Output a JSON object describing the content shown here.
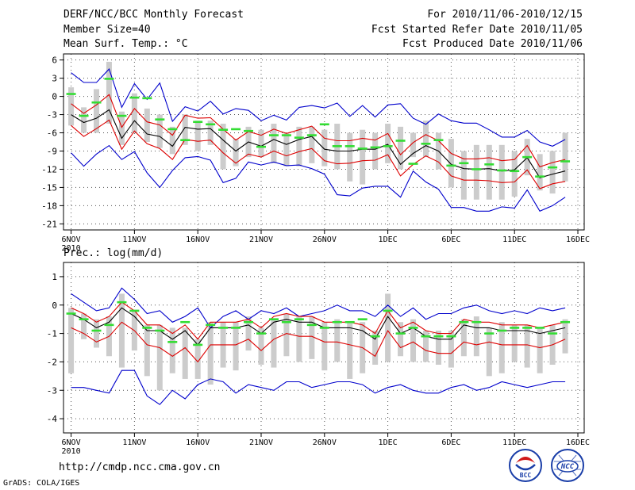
{
  "header": {
    "title": "DERF/NCC/BCC Monthly Forecast",
    "member_size": "Member Size=40",
    "variable": "Mean Surf. Temp.: °C",
    "period": "For 2010/11/06-2010/12/15",
    "fcst_started": "Fcst Started Refer Date 2010/11/05",
    "fcst_produced": "Fcst Produced Date 2010/11/06"
  },
  "footer": {
    "url": "http://cmdp.ncc.cma.gov.cn",
    "grads": "GrADS: COLA/IGES"
  },
  "logos": {
    "bcc": "BCC",
    "ncc": "NCC"
  },
  "colors": {
    "bar": "#cccccc",
    "envelope": "#0000cc",
    "spread": "#dd0000",
    "mean": "#000000",
    "marker": "#33dd33",
    "grid": "#555555"
  },
  "chart_data": [
    {
      "type": "line",
      "title": "Mean Surf. Temp.: °C",
      "xlabel": "",
      "ylabel": "",
      "ylim": [
        -22,
        7
      ],
      "yticks": [
        6,
        3,
        0,
        -3,
        -6,
        -9,
        -12,
        -15,
        -18,
        -21
      ],
      "grid": true,
      "xticks": [
        {
          "day": 1,
          "label": "6NOV",
          "sub": "2010"
        },
        {
          "day": 6,
          "label": "11NOV"
        },
        {
          "day": 11,
          "label": "16NOV"
        },
        {
          "day": 16,
          "label": "21NOV"
        },
        {
          "day": 21,
          "label": "26NOV"
        },
        {
          "day": 26,
          "label": "1DEC"
        },
        {
          "day": 31,
          "label": "6DEC"
        },
        {
          "day": 36,
          "label": "11DEC"
        },
        {
          "day": 41,
          "label": "16DEC"
        }
      ],
      "x": [
        1,
        2,
        3,
        4,
        5,
        6,
        7,
        8,
        9,
        10,
        11,
        12,
        13,
        14,
        15,
        16,
        17,
        18,
        19,
        20,
        21,
        22,
        23,
        24,
        25,
        26,
        27,
        28,
        29,
        30,
        31,
        32,
        33,
        34,
        35,
        36,
        37,
        38,
        39,
        40
      ],
      "series": [
        {
          "name": "max",
          "role": "envelope",
          "values": [
            3.9,
            2.3,
            2.3,
            4.5,
            -1.8,
            2.1,
            -0.5,
            2.2,
            -4.1,
            -1.7,
            -2.4,
            -0.8,
            -2.9,
            -2.0,
            -2.3,
            -4.0,
            -3.1,
            -3.9,
            -1.8,
            -1.5,
            -1.9,
            -1.1,
            -3.3,
            -1.5,
            -3.4,
            -1.4,
            -1.2,
            -3.6,
            -4.6,
            -2.9,
            -4.0,
            -4.4,
            -4.4,
            -5.5,
            -6.7,
            -6.7,
            -5.6,
            -7.5,
            -8.2,
            -7.1
          ]
        },
        {
          "name": "upper",
          "role": "spread",
          "values": [
            -1.2,
            -2.8,
            -1.4,
            0.3,
            -5.1,
            -2.0,
            -4.2,
            -4.7,
            -6.4,
            -3.1,
            -3.6,
            -3.5,
            -5.4,
            -7.2,
            -5.8,
            -6.4,
            -5.4,
            -6.1,
            -5.5,
            -4.9,
            -6.9,
            -7.3,
            -7.3,
            -6.9,
            -7.2,
            -6.1,
            -9.6,
            -7.6,
            -6.3,
            -7.3,
            -9.4,
            -10.3,
            -10.3,
            -10.1,
            -10.6,
            -10.4,
            -8.1,
            -11.6,
            -10.9,
            -10.4
          ]
        },
        {
          "name": "mean",
          "role": "mean",
          "values": [
            -3.0,
            -4.3,
            -3.6,
            -2.2,
            -6.9,
            -4.0,
            -6.2,
            -6.6,
            -8.2,
            -5.1,
            -5.4,
            -5.3,
            -7.2,
            -9.0,
            -7.5,
            -8.2,
            -7.1,
            -7.9,
            -7.1,
            -6.6,
            -8.7,
            -9.0,
            -9.0,
            -8.7,
            -8.7,
            -7.9,
            -11.2,
            -9.4,
            -8.1,
            -9.0,
            -11.2,
            -11.9,
            -12.0,
            -11.9,
            -12.3,
            -12.1,
            -10.1,
            -13.4,
            -12.8,
            -12.3
          ]
        },
        {
          "name": "lower",
          "role": "spread",
          "values": [
            -4.8,
            -6.6,
            -5.3,
            -3.9,
            -8.7,
            -5.7,
            -7.8,
            -8.6,
            -10.4,
            -7.1,
            -7.4,
            -7.2,
            -9.3,
            -11.0,
            -9.5,
            -10.0,
            -9.0,
            -9.8,
            -9.1,
            -8.6,
            -10.6,
            -11.1,
            -11.0,
            -10.6,
            -10.5,
            -9.6,
            -13.1,
            -11.2,
            -9.8,
            -10.8,
            -13.1,
            -13.8,
            -13.8,
            -13.9,
            -14.2,
            -14.1,
            -12.1,
            -15.2,
            -14.4,
            -14.0
          ]
        },
        {
          "name": "min",
          "role": "envelope",
          "values": [
            -9.3,
            -11.5,
            -9.5,
            -8.1,
            -10.4,
            -9.1,
            -12.6,
            -15.0,
            -12.2,
            -10.1,
            -9.9,
            -10.5,
            -14.2,
            -13.5,
            -10.8,
            -11.3,
            -10.8,
            -11.4,
            -11.3,
            -11.9,
            -12.8,
            -16.2,
            -16.4,
            -15.1,
            -14.8,
            -14.8,
            -16.6,
            -12.3,
            -14.1,
            -15.3,
            -18.3,
            -18.3,
            -18.9,
            -18.9,
            -18.2,
            -18.4,
            -15.4,
            -18.9,
            -18.0,
            -16.6
          ]
        }
      ],
      "observed": [
        0.4,
        -3.2,
        -1.0,
        2.9,
        -3.2,
        -0.2,
        -0.3,
        -3.8,
        -5.4,
        -7.2,
        -4.2,
        -4.6,
        -5.5,
        -5.4,
        -5.7,
        -8.3,
        -6.4,
        -6.4,
        -6.8,
        -6.4,
        -4.6,
        -8.2,
        -8.2,
        -8.6,
        -8.4,
        -8.2,
        -7.3,
        -11.1,
        -7.8,
        -7.2,
        -11.4,
        -11.0,
        -12.0,
        -11.2,
        -12.2,
        -12.3,
        -10.0,
        -13.2,
        -11.7,
        -10.7
      ],
      "bars": [
        [
          -4.8,
          1.5
        ],
        [
          -6.0,
          -1.8
        ],
        [
          -6.0,
          1.2
        ],
        [
          -4.5,
          5.7
        ],
        [
          -8.0,
          -2.5
        ],
        [
          -6.0,
          0.5
        ],
        [
          -7.5,
          -2.0
        ],
        [
          -8.5,
          -3.0
        ],
        [
          -9.5,
          -5.0
        ],
        [
          -8.0,
          -3.0
        ],
        [
          -9.0,
          -4.0
        ],
        [
          -8.0,
          -4.0
        ],
        [
          -12.0,
          -4.5
        ],
        [
          -11.5,
          -7.0
        ],
        [
          -10.0,
          -5.0
        ],
        [
          -10.0,
          -5.5
        ],
        [
          -11.0,
          -4.5
        ],
        [
          -11.5,
          -6.0
        ],
        [
          -11.5,
          -5.0
        ],
        [
          -11.0,
          -5.0
        ],
        [
          -11.5,
          -5.5
        ],
        [
          -12.0,
          -4.5
        ],
        [
          -14.0,
          -6.0
        ],
        [
          -14.5,
          -5.5
        ],
        [
          -12.0,
          -6.0
        ],
        [
          -11.0,
          -4.5
        ],
        [
          -12.0,
          -5.0
        ],
        [
          -10.0,
          -6.0
        ],
        [
          -10.0,
          -4.0
        ],
        [
          -12.0,
          -6.0
        ],
        [
          -15.0,
          -7.0
        ],
        [
          -17.0,
          -9.0
        ],
        [
          -17.0,
          -8.0
        ],
        [
          -17.0,
          -8.0
        ],
        [
          -17.0,
          -8.0
        ],
        [
          -16.5,
          -9.0
        ],
        [
          -13.0,
          -7.0
        ],
        [
          -15.5,
          -9.5
        ],
        [
          -16.0,
          -9.0
        ],
        [
          -14.0,
          -6.0
        ]
      ]
    },
    {
      "type": "line",
      "title": "Prec.: log(mm/d)",
      "xlabel": "",
      "ylabel": "",
      "ylim": [
        -4.5,
        1.5
      ],
      "yticks": [
        1,
        0,
        -1,
        -2,
        -3,
        -4
      ],
      "grid": true,
      "xticks": [
        {
          "day": 1,
          "label": "6NOV",
          "sub": "2010"
        },
        {
          "day": 6,
          "label": "11NOV"
        },
        {
          "day": 11,
          "label": "16NOV"
        },
        {
          "day": 16,
          "label": "21NOV"
        },
        {
          "day": 21,
          "label": "26NOV"
        },
        {
          "day": 26,
          "label": "1DEC"
        },
        {
          "day": 31,
          "label": "6DEC"
        },
        {
          "day": 36,
          "label": "11DEC"
        },
        {
          "day": 41,
          "label": "16DEC"
        }
      ],
      "x": [
        1,
        2,
        3,
        4,
        5,
        6,
        7,
        8,
        9,
        10,
        11,
        12,
        13,
        14,
        15,
        16,
        17,
        18,
        19,
        20,
        21,
        22,
        23,
        24,
        25,
        26,
        27,
        28,
        29,
        30,
        31,
        32,
        33,
        34,
        35,
        36,
        37,
        38,
        39,
        40
      ],
      "series": [
        {
          "name": "max",
          "role": "envelope",
          "values": [
            0.4,
            0.1,
            -0.2,
            -0.1,
            0.6,
            0.2,
            -0.3,
            -0.2,
            -0.6,
            -0.4,
            -0.1,
            -0.8,
            -0.4,
            -0.2,
            -0.5,
            -0.2,
            -0.3,
            -0.1,
            -0.4,
            -0.3,
            -0.2,
            0.0,
            -0.2,
            -0.2,
            -0.4,
            0.0,
            -0.4,
            -0.1,
            -0.5,
            -0.3,
            -0.3,
            -0.1,
            0.0,
            -0.2,
            -0.3,
            -0.2,
            -0.3,
            -0.1,
            -0.2,
            -0.1
          ]
        },
        {
          "name": "upper",
          "role": "spread",
          "values": [
            -0.1,
            -0.3,
            -0.6,
            -0.4,
            0.1,
            -0.2,
            -0.7,
            -0.7,
            -1.0,
            -0.7,
            -1.2,
            -0.6,
            -0.6,
            -0.6,
            -0.5,
            -0.8,
            -0.4,
            -0.3,
            -0.4,
            -0.4,
            -0.6,
            -0.6,
            -0.6,
            -0.7,
            -1.0,
            -0.2,
            -0.8,
            -0.6,
            -0.9,
            -1.0,
            -1.0,
            -0.5,
            -0.6,
            -0.6,
            -0.7,
            -0.7,
            -0.7,
            -0.8,
            -0.7,
            -0.6
          ]
        },
        {
          "name": "mean",
          "role": "mean",
          "values": [
            -0.3,
            -0.5,
            -0.8,
            -0.6,
            -0.1,
            -0.4,
            -0.9,
            -0.9,
            -1.2,
            -0.9,
            -1.4,
            -0.8,
            -0.8,
            -0.8,
            -0.7,
            -1.0,
            -0.6,
            -0.5,
            -0.6,
            -0.6,
            -0.8,
            -0.8,
            -0.8,
            -0.9,
            -1.2,
            -0.4,
            -1.0,
            -0.8,
            -1.1,
            -1.2,
            -1.2,
            -0.7,
            -0.8,
            -0.8,
            -0.9,
            -0.9,
            -0.9,
            -1.0,
            -0.9,
            -0.8
          ]
        },
        {
          "name": "lower",
          "role": "spread",
          "values": [
            -0.8,
            -1.0,
            -1.3,
            -1.1,
            -0.6,
            -0.9,
            -1.4,
            -1.5,
            -1.8,
            -1.5,
            -2.0,
            -1.4,
            -1.4,
            -1.4,
            -1.2,
            -1.6,
            -1.2,
            -1.0,
            -1.1,
            -1.1,
            -1.3,
            -1.3,
            -1.4,
            -1.5,
            -1.8,
            -0.9,
            -1.5,
            -1.3,
            -1.6,
            -1.7,
            -1.7,
            -1.3,
            -1.4,
            -1.3,
            -1.4,
            -1.4,
            -1.4,
            -1.5,
            -1.4,
            -1.2
          ]
        },
        {
          "name": "min",
          "role": "envelope",
          "values": [
            -2.9,
            -2.9,
            -3.0,
            -3.1,
            -2.3,
            -2.3,
            -3.2,
            -3.5,
            -3.0,
            -3.3,
            -2.8,
            -2.6,
            -2.7,
            -3.1,
            -2.8,
            -2.9,
            -3.0,
            -2.7,
            -2.7,
            -2.9,
            -2.8,
            -2.7,
            -2.7,
            -2.8,
            -3.1,
            -2.9,
            -2.8,
            -3.0,
            -3.1,
            -3.1,
            -2.9,
            -2.8,
            -3.0,
            -2.9,
            -2.7,
            -2.8,
            -2.9,
            -2.8,
            -2.7,
            -2.7
          ]
        }
      ],
      "observed": [
        -0.3,
        -0.5,
        -0.9,
        -0.7,
        0.1,
        -0.2,
        -0.8,
        -0.9,
        -1.3,
        -0.6,
        -1.4,
        -0.7,
        -0.8,
        -0.8,
        -0.6,
        -1.0,
        -0.5,
        -0.6,
        -0.5,
        -0.7,
        -0.8,
        -0.6,
        -0.6,
        -0.5,
        -1.1,
        -0.2,
        -1.0,
        -0.8,
        -1.1,
        -1.1,
        -1.1,
        -0.6,
        -0.6,
        -1.0,
        -0.9,
        -0.8,
        -0.8,
        -0.8,
        -1.0,
        -0.6
      ]
    }
  ],
  "bars_lower": [
    [
      -2.4,
      -0.1
    ],
    [
      -1.2,
      -0.3
    ],
    [
      -1.5,
      -0.5
    ],
    [
      -1.8,
      -0.4
    ],
    [
      -2.2,
      0.4
    ],
    [
      -1.6,
      -0.2
    ],
    [
      -2.5,
      -0.7
    ],
    [
      -3.0,
      -0.7
    ],
    [
      -2.4,
      -0.8
    ],
    [
      -2.6,
      -0.8
    ],
    [
      -2.6,
      -1.2
    ],
    [
      -2.8,
      -0.6
    ],
    [
      -2.2,
      -0.6
    ],
    [
      -2.3,
      -0.6
    ],
    [
      -1.6,
      -0.4
    ],
    [
      -2.1,
      -0.8
    ],
    [
      -2.2,
      -0.5
    ],
    [
      -1.8,
      -0.3
    ],
    [
      -2.0,
      -0.4
    ],
    [
      -1.9,
      -0.4
    ],
    [
      -2.3,
      -0.6
    ],
    [
      -2.0,
      -0.5
    ],
    [
      -2.6,
      -0.6
    ],
    [
      -2.4,
      -0.6
    ],
    [
      -2.1,
      -0.9
    ],
    [
      -2.0,
      0.4
    ],
    [
      -1.8,
      -0.6
    ],
    [
      -2.0,
      -0.5
    ],
    [
      -2.0,
      -0.9
    ],
    [
      -2.1,
      -0.9
    ],
    [
      -2.2,
      -0.9
    ],
    [
      -1.8,
      -0.5
    ],
    [
      -1.8,
      -0.4
    ],
    [
      -2.5,
      -0.8
    ],
    [
      -2.4,
      -0.6
    ],
    [
      -2.0,
      -0.7
    ],
    [
      -2.2,
      -0.7
    ],
    [
      -2.4,
      -0.8
    ],
    [
      -2.1,
      -0.7
    ],
    [
      -1.7,
      -0.5
    ]
  ]
}
